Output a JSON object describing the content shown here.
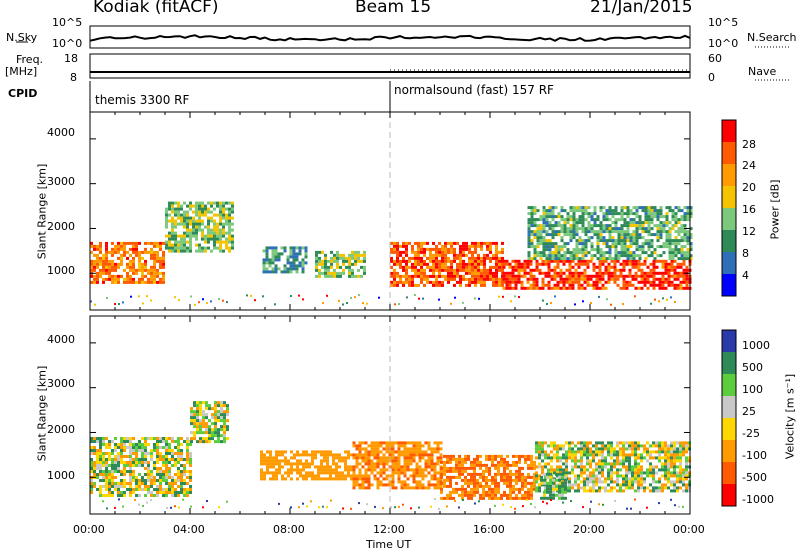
{
  "header": {
    "radar": "Kodiak (fitACF)",
    "beam": "Beam 15",
    "date": "21/Jan/2015"
  },
  "params": {
    "nsky_label": "N.Sky",
    "nsearch_label": "N.Search",
    "freq_label_1": "Freq.",
    "freq_label_2": "[MHz]",
    "nave_label": "Nave",
    "cpid_label": "CPID",
    "noise_ticks_left": [
      "10^5",
      "10^0"
    ],
    "noise_ticks_right": [
      "10^5",
      "10^0"
    ],
    "freq_ticks": [
      "18",
      "8"
    ],
    "nave_ticks": [
      "60",
      "0"
    ]
  },
  "cpid": {
    "segments": [
      {
        "label": "themis 3300 RF",
        "start": "00:00"
      },
      {
        "label": "normalsound (fast) 157 RF",
        "start": "12:00"
      }
    ]
  },
  "axes": {
    "ylabel": "Slant Range [km]",
    "yticks": [
      "4000",
      "3000",
      "2000",
      "1000"
    ],
    "xlabel": "Time UT",
    "xticks": [
      "00:00",
      "04:00",
      "08:00",
      "12:00",
      "16:00",
      "20:00",
      "00:00"
    ]
  },
  "power_scale": {
    "label": "Power [dB]",
    "ticks": [
      "28",
      "24",
      "20",
      "16",
      "12",
      "8",
      "4"
    ],
    "colors": [
      "#ff0000",
      "#ff5a00",
      "#ff9a00",
      "#f5c400",
      "#7cc87c",
      "#2e8b57",
      "#2f6fb8",
      "#0000ff"
    ]
  },
  "velocity_scale": {
    "label": "Velocity [m s⁻¹]",
    "ticks": [
      "1000",
      "500",
      "100",
      "25",
      "-25",
      "-100",
      "-500",
      "-1000"
    ],
    "colors": [
      "#2a3aa8",
      "#2e8b57",
      "#5ccd3c",
      "#c8c8c8",
      "#ffd700",
      "#ff9a00",
      "#ff5a00",
      "#ff0000"
    ]
  },
  "chart_data": [
    {
      "type": "heatmap",
      "title": "Power",
      "xlabel": "Time UT",
      "ylabel": "Slant Range [km]",
      "xlim": [
        0,
        24
      ],
      "ylim": [
        180,
        4600
      ],
      "colorbar": {
        "label": "Power [dB]",
        "range": [
          0,
          32
        ]
      },
      "bands": [
        {
          "t0": 0.0,
          "t1": 3.0,
          "r0": 800,
          "r1": 1700,
          "value": 24
        },
        {
          "t0": 3.0,
          "t1": 5.7,
          "r0": 1500,
          "r1": 2600,
          "value": 14
        },
        {
          "t0": 6.9,
          "t1": 8.7,
          "r0": 1000,
          "r1": 1600,
          "value": 10
        },
        {
          "t0": 9.0,
          "t1": 11.0,
          "r0": 950,
          "r1": 1500,
          "value": 14
        },
        {
          "t0": 12.0,
          "t1": 16.5,
          "r0": 700,
          "r1": 1700,
          "value": 26
        },
        {
          "t0": 16.5,
          "t1": 24.0,
          "r0": 650,
          "r1": 1300,
          "value": 28
        },
        {
          "t0": 17.5,
          "t1": 24.0,
          "r0": 1300,
          "r1": 2500,
          "value": 12
        }
      ]
    },
    {
      "type": "heatmap",
      "title": "Velocity",
      "xlabel": "Time UT",
      "ylabel": "Slant Range [km]",
      "xlim": [
        0,
        24
      ],
      "ylim": [
        180,
        4600
      ],
      "colorbar": {
        "label": "Velocity [m s⁻¹]",
        "range": [
          -1000,
          1000
        ]
      },
      "bands": [
        {
          "t0": 0.0,
          "t1": 4.0,
          "r0": 600,
          "r1": 1900,
          "value": 0
        },
        {
          "t0": 4.0,
          "t1": 5.5,
          "r0": 1800,
          "r1": 2700,
          "value": 0
        },
        {
          "t0": 6.8,
          "t1": 10.5,
          "r0": 950,
          "r1": 1600,
          "value": -300
        },
        {
          "t0": 10.5,
          "t1": 14.0,
          "r0": 750,
          "r1": 1800,
          "value": -400
        },
        {
          "t0": 14.0,
          "t1": 17.8,
          "r0": 550,
          "r1": 1500,
          "value": -500
        },
        {
          "t0": 17.8,
          "t1": 24.0,
          "r0": 700,
          "r1": 1800,
          "value": 0
        },
        {
          "t0": 18.0,
          "t1": 19.0,
          "r0": 500,
          "r1": 1100,
          "value": 150
        }
      ]
    }
  ]
}
